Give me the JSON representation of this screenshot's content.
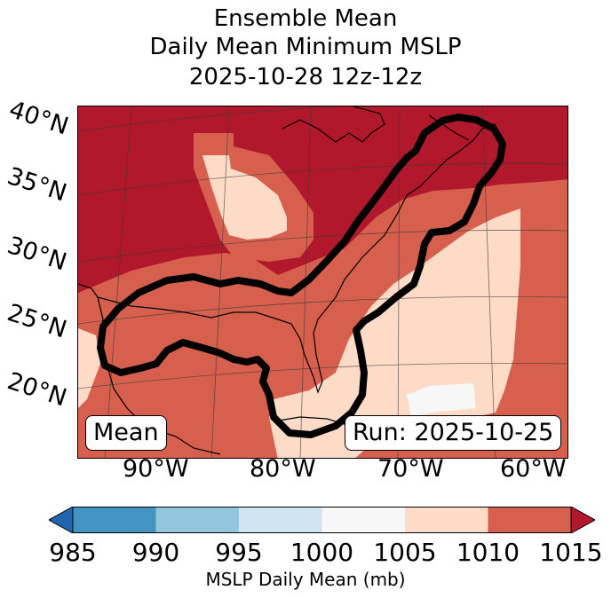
{
  "title": {
    "line1": "Ensemble Mean",
    "line2": "Daily Mean Minimum MSLP",
    "line3": "2025-10-28 12z-12z"
  },
  "map": {
    "lat_labels": [
      "40°N",
      "35°N",
      "30°N",
      "25°N",
      "20°N"
    ],
    "lon_labels": [
      "90°W",
      "80°W",
      "70°W",
      "60°W"
    ],
    "mean_label": "Mean",
    "run_label": "Run: 2025-10-25",
    "contour_color": "#000000"
  },
  "colorbar": {
    "label": "MSLP Daily Mean (mb)",
    "ticks": [
      "985",
      "990",
      "995",
      "1000",
      "1005",
      "1010",
      "1015"
    ],
    "tick_values": [
      985,
      990,
      995,
      1000,
      1005,
      1010,
      1015
    ],
    "range": [
      985,
      1015
    ],
    "colors": [
      "#4393c3",
      "#92c5de",
      "#d1e5f0",
      "#f7f7f7",
      "#fddbc7",
      "#d6604d",
      "#b2182b"
    ],
    "extend_low_color": "#2166ac",
    "extend_high_color": "#b2182b"
  },
  "chart_data": {
    "type": "heatmap",
    "title": "Ensemble Mean Daily Mean Minimum MSLP 2025-10-28 12z-12z",
    "variable": "MSLP Daily Mean",
    "units": "mb",
    "color_levels": [
      985,
      990,
      995,
      1000,
      1005,
      1010,
      1015
    ],
    "lat_range": [
      15,
      40
    ],
    "lon_range": [
      -95,
      -60
    ],
    "legend_label": "MSLP Daily Mean (mb)"
  }
}
